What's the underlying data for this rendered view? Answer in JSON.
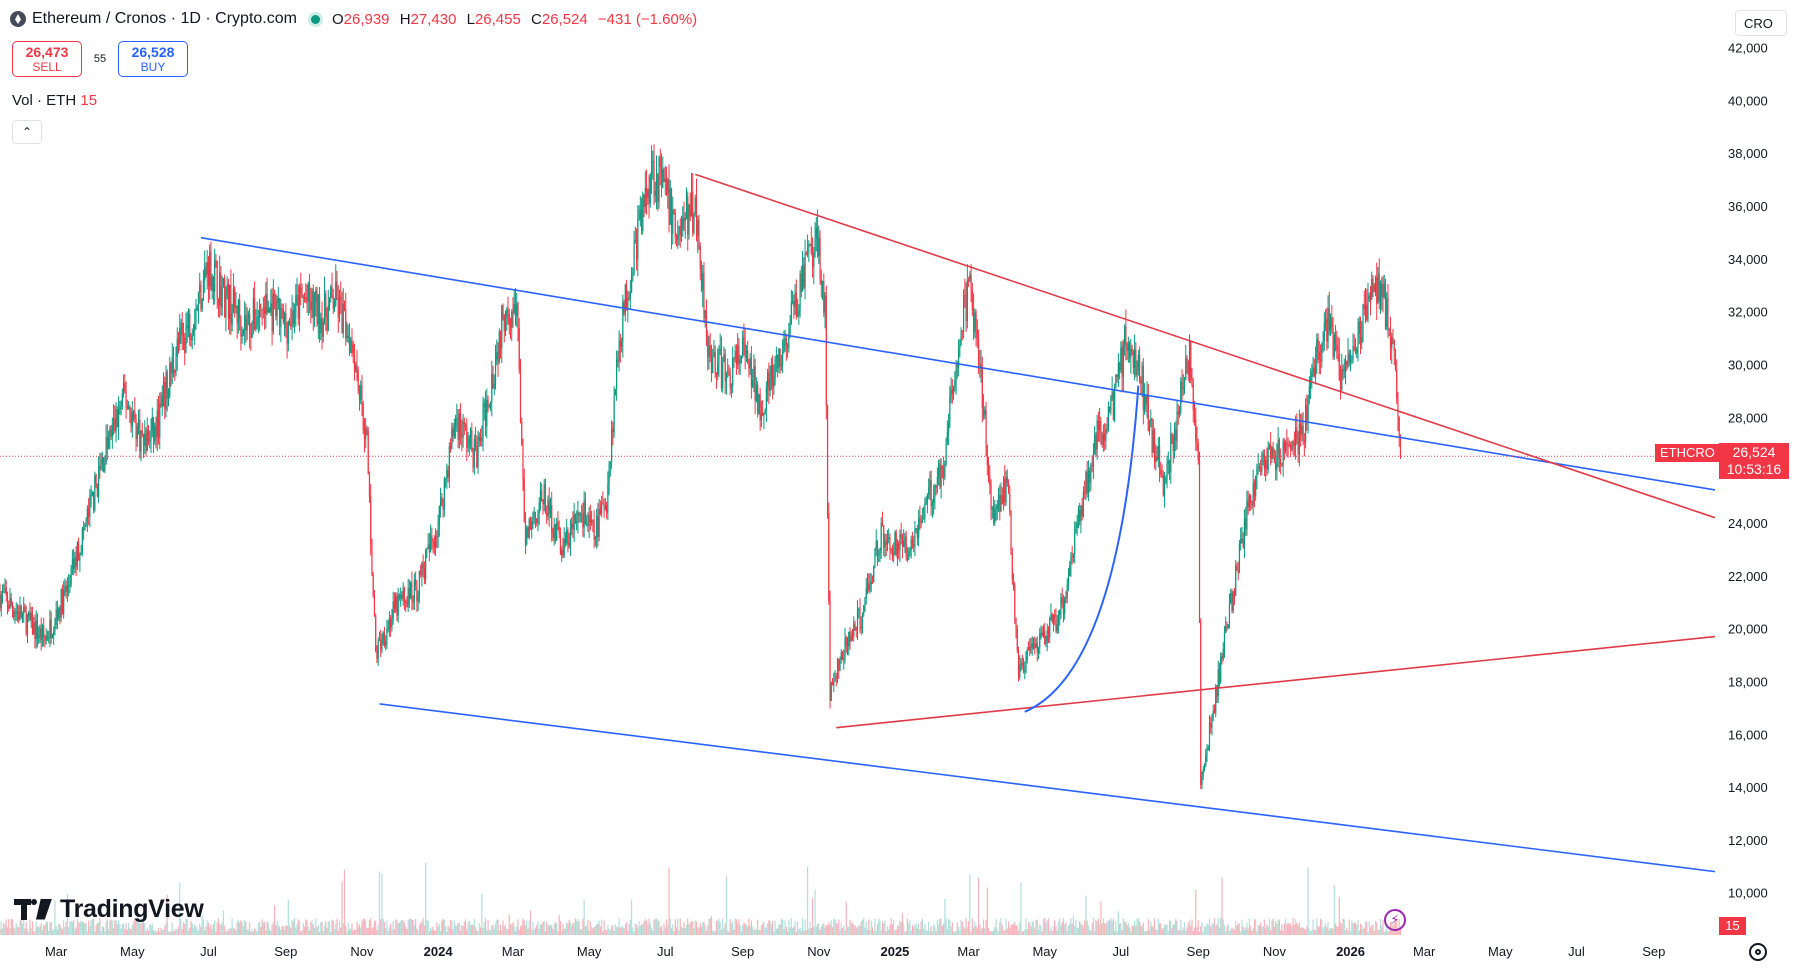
{
  "legend": {
    "title": "Ethereum / Cronos · 1D · Crypto.com",
    "o_label": "O",
    "o": "26,939",
    "h_label": "H",
    "h": "27,430",
    "l_label": "L",
    "l": "26,455",
    "c_label": "C",
    "c": "26,524",
    "change": "−431 (−1.60%)"
  },
  "trade": {
    "sell_price": "26,473",
    "sell_label": "SELL",
    "spread": "55",
    "buy_price": "26,528",
    "buy_label": "BUY"
  },
  "volume_legend": {
    "label": "Vol · ETH",
    "value": "15"
  },
  "collapse_icon": "chevron-up-icon",
  "currency": "CRO",
  "symbol_tag": "ETHCRO",
  "last_price": "26,524",
  "countdown": "10:53:16",
  "volume_tag": "15",
  "brand": "TradingView",
  "colors": {
    "up": "#089981",
    "down": "#f23645",
    "blue_line": "#2962ff",
    "red_line": "#e03a47",
    "vol_up": "#b2dfdb",
    "vol_down": "#f7b3b9"
  },
  "chart_data": {
    "type": "candlestick",
    "symbol": "ETHCRO",
    "interval": "1D",
    "x_tick_labels": [
      "Mar",
      "May",
      "Jul",
      "Sep",
      "Nov",
      "2024",
      "Mar",
      "May",
      "Jul",
      "Sep",
      "Nov",
      "2025",
      "Mar",
      "May",
      "Jul",
      "Sep",
      "Nov",
      "2026",
      "Mar",
      "May",
      "Jul",
      "Sep"
    ],
    "bold_ticks": [
      "2024",
      "2025",
      "2026"
    ],
    "y_ticks": [
      10000,
      12000,
      14000,
      16000,
      18000,
      20000,
      22000,
      24000,
      26000,
      28000,
      30000,
      32000,
      34000,
      36000,
      38000,
      40000,
      42000
    ],
    "y_tick_labels": [
      "10,000",
      "12,000",
      "14,000",
      "16,000",
      "18,000",
      "20,000",
      "22,000",
      "24,000",
      "26,000",
      "28,000",
      "30,000",
      "32,000",
      "34,000",
      "36,000",
      "38,000",
      "40,000",
      "42,000"
    ],
    "ylim": [
      8400,
      43800
    ],
    "x_range": [
      "2023-01-15",
      "2026-10-20"
    ],
    "grid": false,
    "close_path": [
      [
        "2023-01-15",
        21300
      ],
      [
        "2023-02-01",
        20500
      ],
      [
        "2023-02-20",
        19600
      ],
      [
        "2023-03-10",
        21500
      ],
      [
        "2023-03-25",
        24000
      ],
      [
        "2023-04-10",
        26800
      ],
      [
        "2023-04-25",
        28800
      ],
      [
        "2023-05-10",
        27000
      ],
      [
        "2023-05-20",
        27500
      ],
      [
        "2023-06-05",
        30500
      ],
      [
        "2023-06-20",
        32000
      ],
      [
        "2023-07-01",
        33800
      ],
      [
        "2023-07-15",
        32500
      ],
      [
        "2023-08-01",
        31500
      ],
      [
        "2023-08-15",
        32200
      ],
      [
        "2023-09-01",
        31500
      ],
      [
        "2023-09-15",
        32500
      ],
      [
        "2023-10-01",
        31800
      ],
      [
        "2023-10-10",
        32500
      ],
      [
        "2023-10-25",
        30800
      ],
      [
        "2023-11-05",
        27000
      ],
      [
        "2023-11-12",
        19000
      ],
      [
        "2023-11-20",
        20000
      ],
      [
        "2023-12-01",
        21000
      ],
      [
        "2023-12-15",
        21500
      ],
      [
        "2024-01-01",
        24000
      ],
      [
        "2024-01-15",
        28000
      ],
      [
        "2024-02-01",
        26500
      ],
      [
        "2024-02-15",
        30000
      ],
      [
        "2024-02-25",
        32500
      ],
      [
        "2024-03-05",
        31500
      ],
      [
        "2024-03-10",
        23500
      ],
      [
        "2024-03-25",
        25000
      ],
      [
        "2024-04-10",
        23000
      ],
      [
        "2024-04-25",
        24500
      ],
      [
        "2024-05-05",
        23500
      ],
      [
        "2024-05-15",
        25000
      ],
      [
        "2024-05-25",
        31000
      ],
      [
        "2024-06-05",
        34000
      ],
      [
        "2024-06-20",
        37500
      ],
      [
        "2024-07-01",
        36500
      ],
      [
        "2024-07-10",
        35000
      ],
      [
        "2024-07-25",
        36000
      ],
      [
        "2024-08-05",
        30500
      ],
      [
        "2024-08-20",
        29500
      ],
      [
        "2024-09-01",
        30500
      ],
      [
        "2024-09-15",
        28500
      ],
      [
        "2024-10-01",
        30000
      ],
      [
        "2024-10-20",
        33500
      ],
      [
        "2024-11-01",
        34500
      ],
      [
        "2024-11-06",
        32000
      ],
      [
        "2024-11-10",
        17500
      ],
      [
        "2024-11-20",
        19000
      ],
      [
        "2024-12-05",
        20500
      ],
      [
        "2024-12-20",
        23500
      ],
      [
        "2025-01-10",
        23000
      ],
      [
        "2025-01-25",
        24500
      ],
      [
        "2025-02-10",
        26500
      ],
      [
        "2025-02-20",
        30500
      ],
      [
        "2025-03-01",
        33000
      ],
      [
        "2025-03-10",
        30000
      ],
      [
        "2025-03-20",
        24500
      ],
      [
        "2025-04-01",
        25500
      ],
      [
        "2025-04-10",
        18500
      ],
      [
        "2025-04-25",
        19200
      ],
      [
        "2025-05-15",
        20800
      ],
      [
        "2025-05-25",
        23500
      ],
      [
        "2025-06-10",
        27000
      ],
      [
        "2025-06-25",
        28500
      ],
      [
        "2025-07-05",
        31000
      ],
      [
        "2025-07-15",
        30000
      ],
      [
        "2025-07-25",
        27500
      ],
      [
        "2025-08-05",
        25500
      ],
      [
        "2025-08-15",
        28000
      ],
      [
        "2025-08-25",
        30500
      ],
      [
        "2025-09-01",
        26500
      ],
      [
        "2025-09-03",
        14000
      ],
      [
        "2025-09-15",
        17500
      ],
      [
        "2025-10-01",
        22000
      ],
      [
        "2025-10-15",
        25500
      ],
      [
        "2025-10-25",
        26500
      ],
      [
        "2025-11-10",
        26500
      ],
      [
        "2025-11-25",
        27500
      ],
      [
        "2025-12-05",
        30500
      ],
      [
        "2025-12-15",
        31500
      ],
      [
        "2025-12-25",
        29500
      ],
      [
        "2026-01-10",
        31500
      ],
      [
        "2026-01-20",
        33000
      ],
      [
        "2026-01-28",
        32500
      ],
      [
        "2026-02-05",
        30000
      ],
      [
        "2026-02-10",
        26524
      ]
    ],
    "trendlines": [
      {
        "color": "blue",
        "from": [
          "2023-06-25",
          34800
        ],
        "to": [
          "2026-10-20",
          25250
        ]
      },
      {
        "color": "blue",
        "from": [
          "2023-11-15",
          17150
        ],
        "to": [
          "2026-10-20",
          10800
        ]
      },
      {
        "color": "red",
        "from": [
          "2024-07-25",
          37200
        ],
        "to": [
          "2026-10-20",
          24200
        ]
      },
      {
        "color": "red",
        "from": [
          "2024-11-15",
          16250
        ],
        "to": [
          "2026-10-20",
          19700
        ]
      },
      {
        "color": "blue",
        "type": "curve",
        "from": [
          "2025-04-15",
          16850
        ],
        "to": [
          "2025-07-15",
          29200
        ]
      }
    ],
    "current_price_line": 26524
  }
}
